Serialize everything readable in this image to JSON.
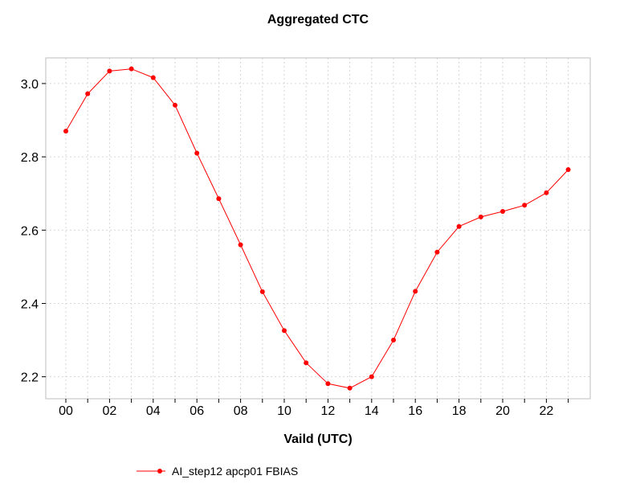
{
  "chart_data": {
    "type": "line",
    "title": "Aggregated CTC",
    "xlabel": "Vaild (UTC)",
    "ylabel": "",
    "x": [
      "00",
      "01",
      "02",
      "03",
      "04",
      "05",
      "06",
      "07",
      "08",
      "09",
      "10",
      "11",
      "12",
      "13",
      "14",
      "15",
      "16",
      "17",
      "18",
      "19",
      "20",
      "21",
      "22",
      "23"
    ],
    "x_tick_labels": [
      "00",
      "02",
      "04",
      "06",
      "08",
      "10",
      "12",
      "14",
      "16",
      "18",
      "20",
      "22"
    ],
    "y_ticks": [
      "2.2",
      "2.4",
      "2.6",
      "2.8",
      "3.0"
    ],
    "ylim": [
      2.14,
      3.07
    ],
    "grid": true,
    "legend_position": "bottom-left",
    "series": [
      {
        "name": "AI_step12 apcp01 FBIAS",
        "color": "#ff0000",
        "values": [
          2.87,
          2.972,
          3.034,
          3.04,
          3.016,
          2.941,
          2.81,
          2.686,
          2.56,
          2.432,
          2.326,
          2.238,
          2.181,
          2.169,
          2.2,
          2.3,
          2.433,
          2.54,
          2.61,
          2.636,
          2.651,
          2.668,
          2.702,
          2.765
        ]
      }
    ]
  }
}
